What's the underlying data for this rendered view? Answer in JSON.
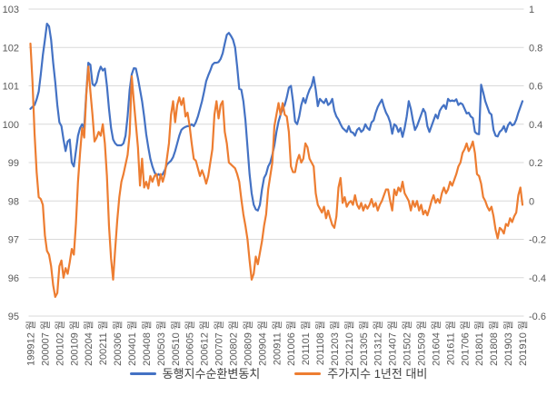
{
  "chart": {
    "background": "#FFFFFF",
    "gridline_color": "#D9D9D9",
    "tick_label_color": "#595959",
    "legend_label_color": "#404040"
  },
  "chart_data": {
    "type": "line",
    "title": "",
    "x_axis": {
      "n_points": 239,
      "label_interval_months": 7,
      "first_period": "199912",
      "last_period": "201910",
      "tick_labels": [
        "199912 월",
        "200007 월",
        "200102 월",
        "200109 월",
        "200204 월",
        "200211 월",
        "200306 월",
        "200401 월",
        "200408 월",
        "200503 월",
        "200510 월",
        "200605 월",
        "200612 월",
        "200707 월",
        "200802 월",
        "200809 월",
        "200904 월",
        "200911 월",
        "201006 월",
        "201101 월",
        "201108 월",
        "201203 월",
        "201210 월",
        "201305 월",
        "201312 월",
        "201407 월",
        "201502 월",
        "201509 월",
        "201604 월",
        "201611 월",
        "201706 월",
        "201801 월",
        "201808 월",
        "201903 월",
        "201910 월"
      ]
    },
    "y_axis_left": {
      "min": 95,
      "max": 103,
      "step": 1,
      "tick_labels": [
        "103",
        "102",
        "101",
        "100",
        "99",
        "98",
        "97",
        "96",
        "95"
      ]
    },
    "y_axis_right": {
      "min": -0.6,
      "max": 1,
      "step": 0.2,
      "tick_labels": [
        "1",
        "0.8",
        "0.6",
        "0.4",
        "0.2",
        "0",
        "-0.2",
        "-0.4",
        "-0.6"
      ]
    },
    "series": [
      {
        "name": "동행지수순환변동치",
        "color": "#4472C4",
        "axis": "left",
        "values": [
          100.4,
          100.45,
          100.5,
          100.65,
          100.85,
          101.3,
          101.8,
          102.2,
          102.62,
          102.55,
          102.2,
          101.6,
          101.1,
          100.5,
          100.05,
          99.95,
          99.6,
          99.3,
          99.55,
          99.6,
          99.0,
          98.9,
          99.3,
          99.7,
          99.9,
          100.0,
          99.9,
          100.8,
          101.6,
          101.55,
          101.05,
          101.0,
          101.1,
          101.35,
          101.5,
          101.4,
          101.45,
          101.0,
          100.4,
          99.9,
          99.6,
          99.5,
          99.45,
          99.45,
          99.45,
          99.5,
          99.7,
          100.2,
          100.9,
          101.3,
          101.46,
          101.45,
          101.2,
          100.9,
          100.6,
          100.2,
          99.74,
          99.4,
          99.1,
          98.9,
          98.75,
          98.65,
          98.7,
          98.65,
          98.7,
          98.8,
          98.95,
          99.0,
          99.05,
          99.14,
          99.3,
          99.5,
          99.7,
          99.85,
          99.9,
          99.93,
          99.95,
          99.95,
          100.0,
          99.95,
          100.05,
          100.2,
          100.4,
          100.6,
          100.85,
          101.12,
          101.27,
          101.4,
          101.55,
          101.6,
          101.6,
          101.62,
          101.7,
          101.85,
          102.1,
          102.33,
          102.38,
          102.3,
          102.2,
          102.0,
          101.5,
          100.92,
          100.9,
          100.6,
          100.1,
          99.4,
          98.7,
          98.2,
          97.9,
          97.78,
          97.75,
          97.9,
          98.3,
          98.6,
          98.7,
          98.9,
          99.0,
          99.2,
          99.45,
          99.8,
          100.07,
          100.25,
          100.4,
          100.5,
          100.7,
          100.95,
          101.0,
          100.6,
          100.07,
          100.0,
          100.2,
          100.5,
          100.68,
          100.55,
          100.75,
          100.9,
          101.0,
          101.23,
          100.9,
          100.47,
          100.66,
          100.6,
          100.55,
          100.66,
          100.5,
          100.55,
          100.66,
          100.35,
          100.2,
          100.12,
          100.0,
          99.9,
          99.85,
          99.8,
          99.95,
          99.8,
          99.78,
          99.7,
          99.85,
          99.9,
          99.8,
          99.85,
          100.0,
          99.9,
          99.85,
          100.05,
          100.1,
          100.3,
          100.45,
          100.55,
          100.64,
          100.45,
          100.3,
          100.2,
          100.05,
          99.75,
          100.0,
          99.95,
          99.8,
          99.9,
          99.67,
          99.9,
          100.2,
          100.6,
          100.4,
          100.1,
          99.85,
          99.95,
          100.1,
          100.25,
          100.4,
          100.3,
          99.95,
          99.8,
          99.95,
          100.1,
          100.25,
          100.15,
          100.35,
          100.44,
          100.5,
          100.4,
          100.66,
          100.6,
          100.62,
          100.6,
          100.65,
          100.5,
          100.55,
          100.52,
          100.4,
          100.28,
          100.3,
          100.2,
          100.16,
          99.8,
          99.75,
          99.74,
          101.03,
          100.83,
          100.6,
          100.45,
          100.3,
          100.25,
          99.85,
          99.7,
          99.68,
          99.8,
          99.85,
          99.95,
          99.8,
          99.97,
          100.05,
          99.97,
          100.0,
          100.12,
          100.3,
          100.45,
          100.6
        ]
      },
      {
        "name": "주가지수 1년전 대비",
        "color": "#ED7D31",
        "axis": "right",
        "values": [
          0.82,
          0.62,
          0.35,
          0.15,
          0.02,
          0.01,
          -0.02,
          -0.18,
          -0.26,
          -0.28,
          -0.34,
          -0.44,
          -0.5,
          -0.48,
          -0.34,
          -0.31,
          -0.4,
          -0.35,
          -0.38,
          -0.32,
          -0.25,
          -0.28,
          -0.12,
          0.1,
          0.25,
          0.38,
          0.33,
          0.55,
          0.7,
          0.57,
          0.45,
          0.31,
          0.33,
          0.36,
          0.34,
          0.4,
          0.3,
          0.13,
          -0.13,
          -0.3,
          -0.41,
          -0.25,
          -0.1,
          0.02,
          0.1,
          0.14,
          0.19,
          0.24,
          0.35,
          0.65,
          0.52,
          0.4,
          0.28,
          0.08,
          0.22,
          0.07,
          0.1,
          0.065,
          0.13,
          0.1,
          0.13,
          0.14,
          0.08,
          0.14,
          0.1,
          0.14,
          0.22,
          0.3,
          0.45,
          0.52,
          0.41,
          0.5,
          0.54,
          0.5,
          0.535,
          0.44,
          0.46,
          0.39,
          0.3,
          0.22,
          0.21,
          0.17,
          0.13,
          0.16,
          0.13,
          0.09,
          0.13,
          0.2,
          0.27,
          0.45,
          0.52,
          0.43,
          0.5,
          0.52,
          0.36,
          0.3,
          0.2,
          0.19,
          0.18,
          0.17,
          0.14,
          0.1,
          0.01,
          -0.07,
          -0.13,
          -0.2,
          -0.31,
          -0.41,
          -0.38,
          -0.29,
          -0.33,
          -0.27,
          -0.21,
          -0.13,
          -0.07,
          0.06,
          0.13,
          0.2,
          0.39,
          0.45,
          0.51,
          0.45,
          0.51,
          0.45,
          0.44,
          0.36,
          0.18,
          0.15,
          0.15,
          0.21,
          0.24,
          0.2,
          0.22,
          0.3,
          0.28,
          0.22,
          0.2,
          0.18,
          0.04,
          -0.02,
          -0.04,
          -0.06,
          -0.03,
          -0.09,
          -0.05,
          -0.09,
          -0.125,
          -0.14,
          -0.08,
          0.07,
          0.12,
          -0.01,
          0.02,
          -0.03,
          -0.01,
          0.0,
          -0.02,
          0.03,
          -0.02,
          -0.04,
          -0.01,
          -0.05,
          -0.02,
          -0.04,
          -0.02,
          0.01,
          -0.03,
          -0.01,
          -0.05,
          -0.02,
          0.0,
          0.03,
          0.06,
          0.06,
          0.0,
          -0.05,
          0.06,
          0.03,
          0.07,
          0.05,
          0.1,
          0.04,
          0.02,
          0.0,
          -0.05,
          0.0,
          -0.03,
          0.0,
          -0.05,
          -0.02,
          -0.07,
          -0.05,
          -0.075,
          -0.04,
          0.0,
          0.03,
          -0.01,
          0.01,
          -0.01,
          0.04,
          0.07,
          0.04,
          0.06,
          0.1,
          0.08,
          0.11,
          0.14,
          0.18,
          0.2,
          0.25,
          0.27,
          0.3,
          0.26,
          0.28,
          0.31,
          0.25,
          0.14,
          0.13,
          0.09,
          0.02,
          0.0,
          -0.03,
          -0.05,
          -0.03,
          -0.08,
          -0.15,
          -0.195,
          -0.14,
          -0.15,
          -0.17,
          -0.12,
          -0.13,
          -0.09,
          -0.11,
          -0.08,
          -0.06,
          0.03,
          0.07,
          -0.02
        ]
      }
    ],
    "legend_position": "bottom"
  }
}
